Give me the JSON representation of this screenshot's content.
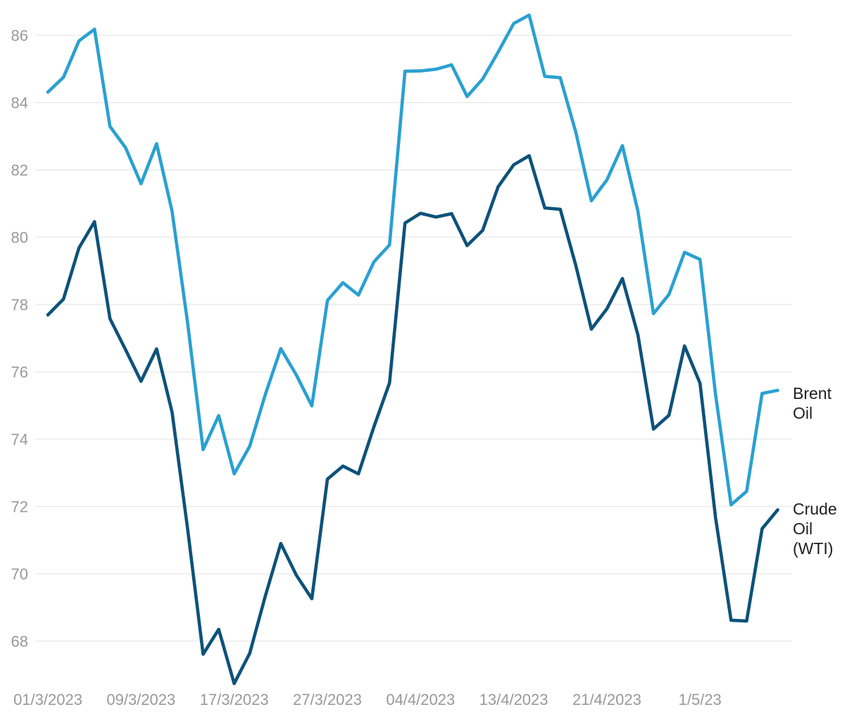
{
  "chart_data": {
    "type": "line",
    "title": "",
    "grid": true,
    "legend_position": "right-end-of-lines",
    "style": {
      "background": "#ffffff",
      "gridline_color": "#e8e8e8",
      "tick_label_color": "#999999",
      "legend_text_color": "#1f1f1f"
    },
    "y_axis": {
      "ticks": [
        86,
        84,
        82,
        80,
        78,
        76,
        74,
        72,
        70,
        68
      ],
      "range": [
        66.5,
        86.8
      ]
    },
    "x_axis": {
      "ticks": [
        {
          "index": 0,
          "label": "01/3/2023"
        },
        {
          "index": 6,
          "label": "09/3/2023"
        },
        {
          "index": 12,
          "label": "17/3/2023"
        },
        {
          "index": 18,
          "label": "27/3/2023"
        },
        {
          "index": 24,
          "label": "04/4/2023"
        },
        {
          "index": 30,
          "label": "13/4/2023"
        },
        {
          "index": 36,
          "label": "21/4/2023"
        },
        {
          "index": 42,
          "label": "1/5/23"
        }
      ]
    },
    "series": [
      {
        "name": "Brent Oil",
        "color": "#2AA0D2",
        "values": [
          84.31,
          84.75,
          85.83,
          86.18,
          83.29,
          82.66,
          81.59,
          82.78,
          80.77,
          77.45,
          73.69,
          74.7,
          72.97,
          73.79,
          75.32,
          76.69,
          75.91,
          74.99,
          78.12,
          78.65,
          78.28,
          79.27,
          79.77,
          84.93,
          84.94,
          84.99,
          85.12,
          84.18,
          84.7,
          85.5,
          86.35,
          86.6,
          84.78,
          84.74,
          83.12,
          81.08,
          81.7,
          82.72,
          80.77,
          77.73,
          78.3,
          79.55,
          79.34,
          75.32,
          72.05,
          72.45,
          75.36,
          75.45
        ]
      },
      {
        "name": "Crude Oil (WTI)",
        "color": "#0D527A",
        "values": [
          77.69,
          78.16,
          79.68,
          80.46,
          77.58,
          76.66,
          75.72,
          76.68,
          74.8,
          71.33,
          67.61,
          68.35,
          66.74,
          67.64,
          69.33,
          70.9,
          69.96,
          69.26,
          72.81,
          73.2,
          72.97,
          74.37,
          75.67,
          80.42,
          80.71,
          80.6,
          80.7,
          79.75,
          80.2,
          81.5,
          82.15,
          82.42,
          80.87,
          80.83,
          79.16,
          77.27,
          77.87,
          78.77,
          77.1,
          74.3,
          74.71,
          76.77,
          75.66,
          71.66,
          68.62,
          68.6,
          71.34,
          71.9
        ]
      }
    ]
  }
}
